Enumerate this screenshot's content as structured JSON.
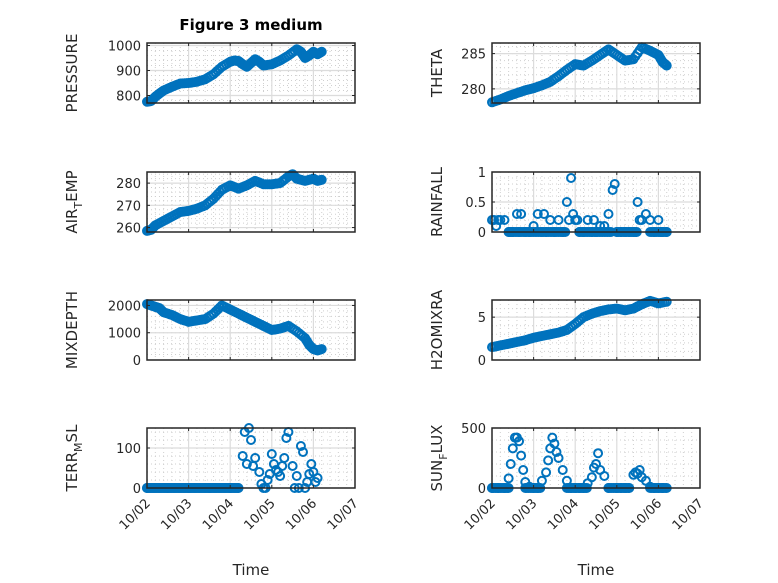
{
  "figure": {
    "title": "Figure 3 medium",
    "marker_color": "#0072BD",
    "marker": "open-circle"
  },
  "chart_data": [
    {
      "type": "scatter",
      "id": "pressure",
      "ylabel": "PRESSURE",
      "xlabel": "",
      "title": "Figure 3 medium",
      "ylim": [
        770,
        1010
      ],
      "yticks": [
        800,
        900,
        1000
      ],
      "ytick_labels": [
        "800",
        "900",
        "1000"
      ],
      "xlim": [
        "10/02",
        "10/07"
      ],
      "grid": "major+minor",
      "x_days": [
        0.0,
        0.1,
        0.2,
        0.3,
        0.4,
        0.6,
        0.8,
        1.0,
        1.2,
        1.4,
        1.6,
        1.8,
        2.0,
        2.1,
        2.2,
        2.3,
        2.4,
        2.5,
        2.6,
        2.7,
        2.8,
        3.0,
        3.2,
        3.4,
        3.6,
        3.7,
        3.8,
        3.9,
        4.0,
        4.1,
        4.2
      ],
      "values": [
        775,
        778,
        795,
        808,
        820,
        835,
        848,
        850,
        855,
        865,
        885,
        915,
        935,
        940,
        938,
        925,
        915,
        930,
        945,
        935,
        920,
        925,
        940,
        960,
        985,
        975,
        950,
        960,
        975,
        965,
        975
      ]
    },
    {
      "type": "scatter",
      "id": "theta",
      "ylabel": "THETA",
      "xlabel": "",
      "ylim": [
        278,
        286.5
      ],
      "yticks": [
        280,
        285
      ],
      "ytick_labels": [
        "280",
        "285"
      ],
      "xlim": [
        "10/02",
        "10/07"
      ],
      "grid": "major+minor",
      "x_days": [
        0.0,
        0.2,
        0.4,
        0.6,
        0.8,
        1.0,
        1.2,
        1.4,
        1.6,
        1.8,
        2.0,
        2.2,
        2.4,
        2.6,
        2.8,
        3.0,
        3.2,
        3.4,
        3.6,
        3.8,
        4.0,
        4.1,
        4.2
      ],
      "values": [
        278.1,
        278.5,
        279.0,
        279.4,
        279.8,
        280.1,
        280.5,
        281.0,
        281.8,
        282.7,
        283.5,
        283.3,
        284.0,
        284.8,
        285.6,
        284.8,
        284.0,
        284.2,
        285.9,
        285.4,
        284.8,
        283.8,
        283.3
      ]
    },
    {
      "type": "scatter",
      "id": "air-temp",
      "ylabel": "AIR_TEMP",
      "ylabel_display": [
        "AIR",
        "T",
        "EMP"
      ],
      "xlabel": "",
      "ylim": [
        258,
        285
      ],
      "yticks": [
        260,
        270,
        280
      ],
      "ytick_labels": [
        "260",
        "270",
        "280"
      ],
      "xlim": [
        "10/02",
        "10/07"
      ],
      "grid": "major+minor",
      "x_days": [
        0.0,
        0.1,
        0.2,
        0.4,
        0.6,
        0.8,
        1.0,
        1.2,
        1.4,
        1.6,
        1.8,
        2.0,
        2.2,
        2.4,
        2.6,
        2.8,
        3.0,
        3.2,
        3.4,
        3.5,
        3.6,
        3.8,
        4.0,
        4.1,
        4.2
      ],
      "values": [
        258.5,
        259,
        261,
        263,
        265,
        267,
        267.5,
        268.5,
        270,
        273,
        277,
        279,
        277.5,
        279,
        281,
        279.5,
        279.5,
        280,
        283,
        284,
        282,
        281,
        282,
        281,
        281.5
      ]
    },
    {
      "type": "scatter",
      "id": "rainfall",
      "ylabel": "RAINFALL",
      "xlabel": "",
      "ylim": [
        0,
        1.0
      ],
      "yticks": [
        0,
        0.5,
        1
      ],
      "ytick_labels": [
        "0",
        "0.5",
        "1"
      ],
      "xlim": [
        "10/02",
        "10/07"
      ],
      "grid": "major+minor",
      "x_days": [
        0.0,
        0.05,
        0.1,
        0.15,
        0.2,
        0.3,
        0.4,
        0.45,
        0.5,
        0.6,
        0.65,
        0.7,
        0.8,
        0.9,
        1.0,
        1.1,
        1.2,
        1.25,
        1.3,
        1.4,
        1.5,
        1.6,
        1.7,
        1.8,
        1.85,
        1.9,
        1.95,
        2.0,
        2.05,
        2.1,
        2.2,
        2.3,
        2.4,
        2.45,
        2.5,
        2.6,
        2.7,
        2.8,
        2.9,
        2.95,
        3.0,
        3.1,
        3.2,
        3.3,
        3.4,
        3.5,
        3.55,
        3.6,
        3.7,
        3.8,
        3.9,
        4.0,
        4.05,
        4.1,
        4.2
      ],
      "values": [
        0.2,
        0.2,
        0.1,
        0.2,
        0.2,
        0.2,
        0.0,
        0.0,
        0.0,
        0.3,
        0.0,
        0.3,
        0.0,
        0.0,
        0.1,
        0.3,
        0.0,
        0.3,
        0.0,
        0.2,
        0.0,
        0.2,
        0.0,
        0.5,
        0.2,
        0.9,
        0.3,
        0.2,
        0.2,
        0.0,
        0.0,
        0.2,
        0.0,
        0.2,
        0.0,
        0.1,
        0.1,
        0.3,
        0.7,
        0.8,
        0.0,
        0.0,
        0.0,
        0.0,
        0.0,
        0.5,
        0.2,
        0.2,
        0.3,
        0.2,
        0.0,
        0.2,
        0.0,
        0.0,
        0.0
      ]
    },
    {
      "type": "scatter",
      "id": "mixdepth",
      "ylabel": "MIXDEPTH",
      "xlabel": "",
      "ylim": [
        0,
        2200
      ],
      "yticks": [
        0,
        1000,
        2000
      ],
      "ytick_labels": [
        "0",
        "1000",
        "2000"
      ],
      "xlim": [
        "10/02",
        "10/07"
      ],
      "grid": "major+minor",
      "x_days": [
        0.0,
        0.1,
        0.2,
        0.3,
        0.4,
        0.6,
        0.8,
        1.0,
        1.2,
        1.4,
        1.6,
        1.8,
        2.0,
        2.2,
        2.4,
        2.6,
        2.8,
        3.0,
        3.2,
        3.4,
        3.6,
        3.8,
        3.9,
        4.0,
        4.1,
        4.2
      ],
      "values": [
        2050,
        2000,
        1950,
        1900,
        1750,
        1650,
        1500,
        1400,
        1450,
        1500,
        1700,
        2000,
        1850,
        1700,
        1550,
        1400,
        1250,
        1100,
        1150,
        1250,
        1050,
        800,
        550,
        400,
        350,
        400
      ]
    },
    {
      "type": "scatter",
      "id": "h2omixra",
      "ylabel": "H2OMIXRA",
      "xlabel": "",
      "ylim": [
        0,
        7
      ],
      "yticks": [
        0,
        5
      ],
      "ytick_labels": [
        "0",
        "5"
      ],
      "xlim": [
        "10/02",
        "10/07"
      ],
      "grid": "major+minor",
      "x_days": [
        0.0,
        0.2,
        0.4,
        0.6,
        0.8,
        1.0,
        1.2,
        1.4,
        1.6,
        1.8,
        2.0,
        2.2,
        2.4,
        2.6,
        2.8,
        3.0,
        3.2,
        3.4,
        3.6,
        3.8,
        4.0,
        4.2
      ],
      "values": [
        1.5,
        1.7,
        1.9,
        2.1,
        2.3,
        2.6,
        2.8,
        3.0,
        3.2,
        3.5,
        4.2,
        5.0,
        5.4,
        5.7,
        5.9,
        6.0,
        5.8,
        6.0,
        6.5,
        6.9,
        6.6,
        6.8
      ]
    },
    {
      "type": "scatter",
      "id": "terr-msl",
      "ylabel": "TERR_MSL",
      "ylabel_display": [
        "TERR",
        "M",
        "SL"
      ],
      "xlabel": "Time",
      "ylim": [
        0,
        150
      ],
      "yticks": [
        0,
        100
      ],
      "ytick_labels": [
        "0",
        "100"
      ],
      "xlim": [
        "10/02",
        "10/07"
      ],
      "xticks": [
        "10/02",
        "10/03",
        "10/04",
        "10/05",
        "10/06",
        "10/07"
      ],
      "grid": "major+minor",
      "x_days": [
        0.0,
        0.5,
        1.0,
        1.5,
        2.0,
        2.2,
        2.3,
        2.35,
        2.4,
        2.45,
        2.5,
        2.55,
        2.6,
        2.7,
        2.75,
        2.8,
        2.85,
        2.9,
        2.95,
        3.0,
        3.05,
        3.1,
        3.15,
        3.2,
        3.25,
        3.3,
        3.35,
        3.4,
        3.5,
        3.55,
        3.6,
        3.65,
        3.7,
        3.75,
        3.8,
        3.85,
        3.9,
        3.95,
        4.0,
        4.05,
        4.1
      ],
      "values": [
        0,
        0,
        0,
        0,
        0,
        0,
        80,
        140,
        60,
        150,
        120,
        55,
        75,
        40,
        10,
        0,
        0,
        20,
        35,
        85,
        60,
        45,
        40,
        30,
        55,
        75,
        125,
        140,
        55,
        0,
        30,
        0,
        105,
        90,
        0,
        15,
        35,
        60,
        40,
        15,
        25
      ]
    },
    {
      "type": "scatter",
      "id": "sun-flux",
      "ylabel": "SUN_FLUX",
      "ylabel_display": [
        "SUN",
        "F",
        "LUX"
      ],
      "xlabel": "Time",
      "ylim": [
        0,
        500
      ],
      "yticks": [
        0,
        500
      ],
      "ytick_labels": [
        "0",
        "500"
      ],
      "xlim": [
        "10/02",
        "10/07"
      ],
      "xticks": [
        "10/02",
        "10/03",
        "10/04",
        "10/05",
        "10/06",
        "10/07"
      ],
      "grid": "major+minor",
      "x_days": [
        0.0,
        0.15,
        0.3,
        0.4,
        0.45,
        0.5,
        0.55,
        0.6,
        0.65,
        0.7,
        0.75,
        0.8,
        0.9,
        1.0,
        1.1,
        1.2,
        1.3,
        1.35,
        1.4,
        1.45,
        1.5,
        1.55,
        1.6,
        1.7,
        1.8,
        1.9,
        2.0,
        2.1,
        2.2,
        2.3,
        2.4,
        2.45,
        2.5,
        2.55,
        2.6,
        2.7,
        2.8,
        3.0,
        3.1,
        3.2,
        3.3,
        3.4,
        3.45,
        3.5,
        3.55,
        3.6,
        3.7,
        3.8,
        3.9,
        4.0,
        4.1
      ],
      "values": [
        0,
        0,
        0,
        80,
        200,
        330,
        420,
        420,
        390,
        270,
        150,
        50,
        10,
        0,
        0,
        60,
        130,
        230,
        330,
        420,
        370,
        300,
        250,
        150,
        60,
        0,
        0,
        0,
        0,
        40,
        90,
        170,
        200,
        290,
        150,
        100,
        0,
        0,
        0,
        0,
        0,
        110,
        130,
        120,
        150,
        90,
        60,
        10,
        0,
        0,
        0
      ]
    }
  ],
  "x_tick_labels": [
    "10/02",
    "10/03",
    "10/04",
    "10/05",
    "10/06",
    "10/07"
  ]
}
